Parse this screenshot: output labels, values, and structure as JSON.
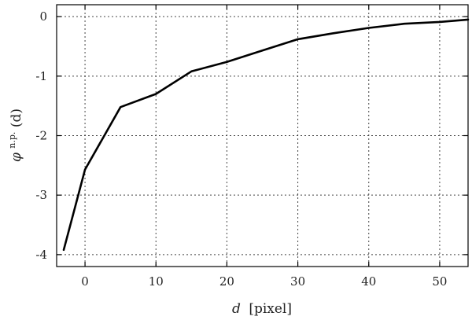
{
  "chart_data": {
    "type": "line",
    "xlabel_var": "d",
    "xlabel_unit": "[pixel]",
    "ylabel_base": "φ",
    "ylabel_sup": "n.p.",
    "ylabel_arg": "(d)",
    "xlim": [
      -4,
      54
    ],
    "ylim": [
      -4.2,
      0.2
    ],
    "xticks": [
      0,
      10,
      20,
      30,
      40,
      50
    ],
    "yticks": [
      0,
      -1,
      -2,
      -3,
      -4
    ],
    "xtick_labels": [
      "0",
      "10",
      "20",
      "30",
      "40",
      "50"
    ],
    "ytick_labels": [
      "0",
      "-1",
      "-2",
      "-3",
      "-4"
    ],
    "grid": true,
    "series": [
      {
        "x": [
          -3,
          0,
          5,
          10,
          15,
          20,
          25,
          30,
          35,
          40,
          45,
          50,
          54
        ],
        "y": [
          -3.92,
          -2.57,
          -1.52,
          -1.3,
          -0.92,
          -0.76,
          -0.57,
          -0.38,
          -0.28,
          -0.19,
          -0.12,
          -0.09,
          -0.05
        ]
      }
    ]
  }
}
